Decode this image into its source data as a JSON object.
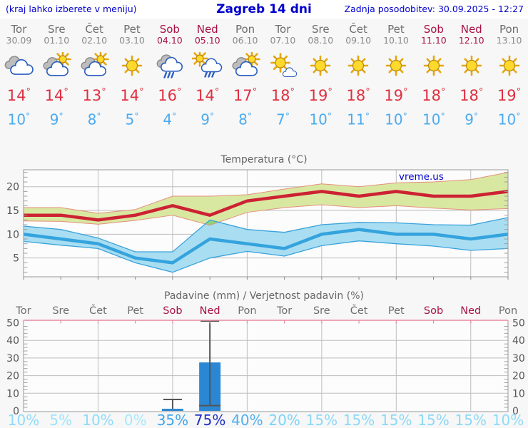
{
  "header": {
    "left_note": "(kraj lahko izberete v meniju)",
    "title": "Zagreb 14 dni",
    "updated": "Zadnja posodobitev: 30.09.2025 - 12:27"
  },
  "units": {
    "degree": "°"
  },
  "colors": {
    "link_blue": "#0000cc",
    "weekend_red": "#aa1144",
    "high_red": "#e02f3f",
    "low_blue": "#4babef"
  },
  "days": [
    {
      "name": "Tor",
      "date": "30.09",
      "weekend": false,
      "icon": "cloudy",
      "high": "14",
      "low": "10",
      "prob": "10%",
      "prob_color": "#8edcf8"
    },
    {
      "name": "Sre",
      "date": "01.10",
      "weekend": false,
      "icon": "partly",
      "high": "14",
      "low": "9",
      "prob": "5%",
      "prob_color": "#9ee4fa"
    },
    {
      "name": "Čet",
      "date": "02.10",
      "weekend": false,
      "icon": "partly",
      "high": "13",
      "low": "8",
      "prob": "10%",
      "prob_color": "#8edcf8"
    },
    {
      "name": "Pet",
      "date": "03.10",
      "weekend": false,
      "icon": "sunny",
      "high": "14",
      "low": "5",
      "prob": "0%",
      "prob_color": "#a6e8fb"
    },
    {
      "name": "Sob",
      "date": "04.10",
      "weekend": true,
      "icon": "rain",
      "high": "16",
      "low": "4",
      "prob": "35%",
      "prob_color": "#3fa4ee"
    },
    {
      "name": "Ned",
      "date": "05.10",
      "weekend": true,
      "icon": "sun-rain",
      "high": "14",
      "low": "9",
      "prob": "75%",
      "prob_color": "#1e2ec4"
    },
    {
      "name": "Pon",
      "date": "06.10",
      "weekend": false,
      "icon": "partly",
      "high": "17",
      "low": "8",
      "prob": "40%",
      "prob_color": "#4db0f1"
    },
    {
      "name": "Tor",
      "date": "07.10",
      "weekend": false,
      "icon": "mostly-sunny",
      "high": "18",
      "low": "7",
      "prob": "20%",
      "prob_color": "#7cd3f6"
    },
    {
      "name": "Sre",
      "date": "08.10",
      "weekend": false,
      "icon": "sunny",
      "high": "19",
      "low": "10",
      "prob": "15%",
      "prob_color": "#8bd9f7"
    },
    {
      "name": "Čet",
      "date": "09.10",
      "weekend": false,
      "icon": "sunny",
      "high": "18",
      "low": "11",
      "prob": "15%",
      "prob_color": "#8bd9f7"
    },
    {
      "name": "Pet",
      "date": "10.10",
      "weekend": false,
      "icon": "sunny",
      "high": "19",
      "low": "10",
      "prob": "15%",
      "prob_color": "#8bd9f7"
    },
    {
      "name": "Sob",
      "date": "11.10",
      "weekend": true,
      "icon": "sunny",
      "high": "18",
      "low": "10",
      "prob": "15%",
      "prob_color": "#8bd9f7"
    },
    {
      "name": "Ned",
      "date": "12.10",
      "weekend": true,
      "icon": "sunny",
      "high": "18",
      "low": "9",
      "prob": "15%",
      "prob_color": "#8bd9f7"
    },
    {
      "name": "Pon",
      "date": "13.10",
      "weekend": false,
      "icon": "sunny",
      "high": "19",
      "low": "10",
      "prob": "10%",
      "prob_color": "#8edcf8"
    }
  ],
  "chart_data": [
    {
      "type": "line",
      "title": "Temperatura (°C)",
      "watermark": "vreme.us",
      "categories": [
        "Tor 30.09",
        "Sre 01.10",
        "Čet 02.10",
        "Pet 03.10",
        "Sob 04.10",
        "Ned 05.10",
        "Pon 06.10",
        "Tor 07.10",
        "Sre 08.10",
        "Čet 09.10",
        "Pet 10.10",
        "Sob 11.10",
        "Ned 12.10",
        "Pon 13.10"
      ],
      "series": [
        {
          "name": "max temperatura",
          "color": "#cc2233",
          "values": [
            14,
            14,
            13,
            14,
            16,
            14,
            17,
            18,
            19,
            18,
            19,
            18,
            18,
            19
          ],
          "band_upper": [
            15.6,
            15.6,
            14.4,
            15.2,
            18.0,
            18.0,
            18.3,
            19.5,
            20.6,
            20.0,
            20.8,
            21.0,
            21.5,
            23.0
          ],
          "band_lower": [
            12.8,
            12.7,
            12.1,
            12.9,
            14.0,
            11.9,
            14.6,
            15.6,
            16.2,
            15.6,
            16.0,
            15.5,
            15.1,
            15.4
          ],
          "band_fill": "#d9e8a1",
          "band_edge": "#e58f7d"
        },
        {
          "name": "min temperatura",
          "color": "#35a3dd",
          "values": [
            10,
            9,
            8,
            5,
            4,
            9,
            8,
            7,
            10,
            11,
            10,
            10,
            9,
            10
          ],
          "band_upper": [
            11.7,
            11.0,
            9.2,
            6.3,
            6.3,
            13.0,
            11.0,
            10.4,
            12.0,
            12.5,
            12.4,
            12.0,
            11.9,
            13.5
          ],
          "band_lower": [
            8.5,
            7.7,
            7.0,
            4.0,
            2.0,
            5.0,
            6.4,
            5.4,
            7.6,
            8.6,
            8.0,
            7.5,
            6.6,
            7.0
          ],
          "band_fill": "#a9def2",
          "band_edge": "#3aa2dc"
        }
      ],
      "overlap_fill": "#8bd478",
      "ylim": [
        1,
        23.5
      ],
      "yticks": [
        5,
        10,
        15,
        20
      ],
      "grid": true,
      "legend": "none"
    },
    {
      "type": "bar",
      "title": "Padavine (mm) / Verjetnost padavin (%)",
      "categories": [
        "Tor",
        "Sre",
        "Čet",
        "Pet",
        "Sob",
        "Ned",
        "Pon",
        "Tor",
        "Sre",
        "Čet",
        "Pet",
        "Sob",
        "Ned",
        "Pon"
      ],
      "values": [
        0,
        0,
        0,
        0,
        1.2,
        27.5,
        0,
        0,
        0,
        0,
        0,
        0,
        0,
        0
      ],
      "range_low": [
        null,
        null,
        null,
        null,
        null,
        3,
        null,
        null,
        null,
        null,
        null,
        null,
        null,
        null
      ],
      "range_high": [
        null,
        null,
        null,
        null,
        6.5,
        51,
        null,
        null,
        null,
        null,
        null,
        null,
        null,
        null
      ],
      "probabilities": [
        "10%",
        "5%",
        "10%",
        "0%",
        "35%",
        "75%",
        "40%",
        "20%",
        "15%",
        "15%",
        "15%",
        "15%",
        "15%",
        "10%"
      ],
      "bar_color": "#2b87d3",
      "whisker_color": "#555555",
      "top_border_color": "#e98aa2",
      "ylim": [
        0,
        51.5
      ],
      "yticks": [
        0,
        10,
        20,
        30,
        40,
        50
      ],
      "grid": true,
      "legend": "none"
    }
  ]
}
